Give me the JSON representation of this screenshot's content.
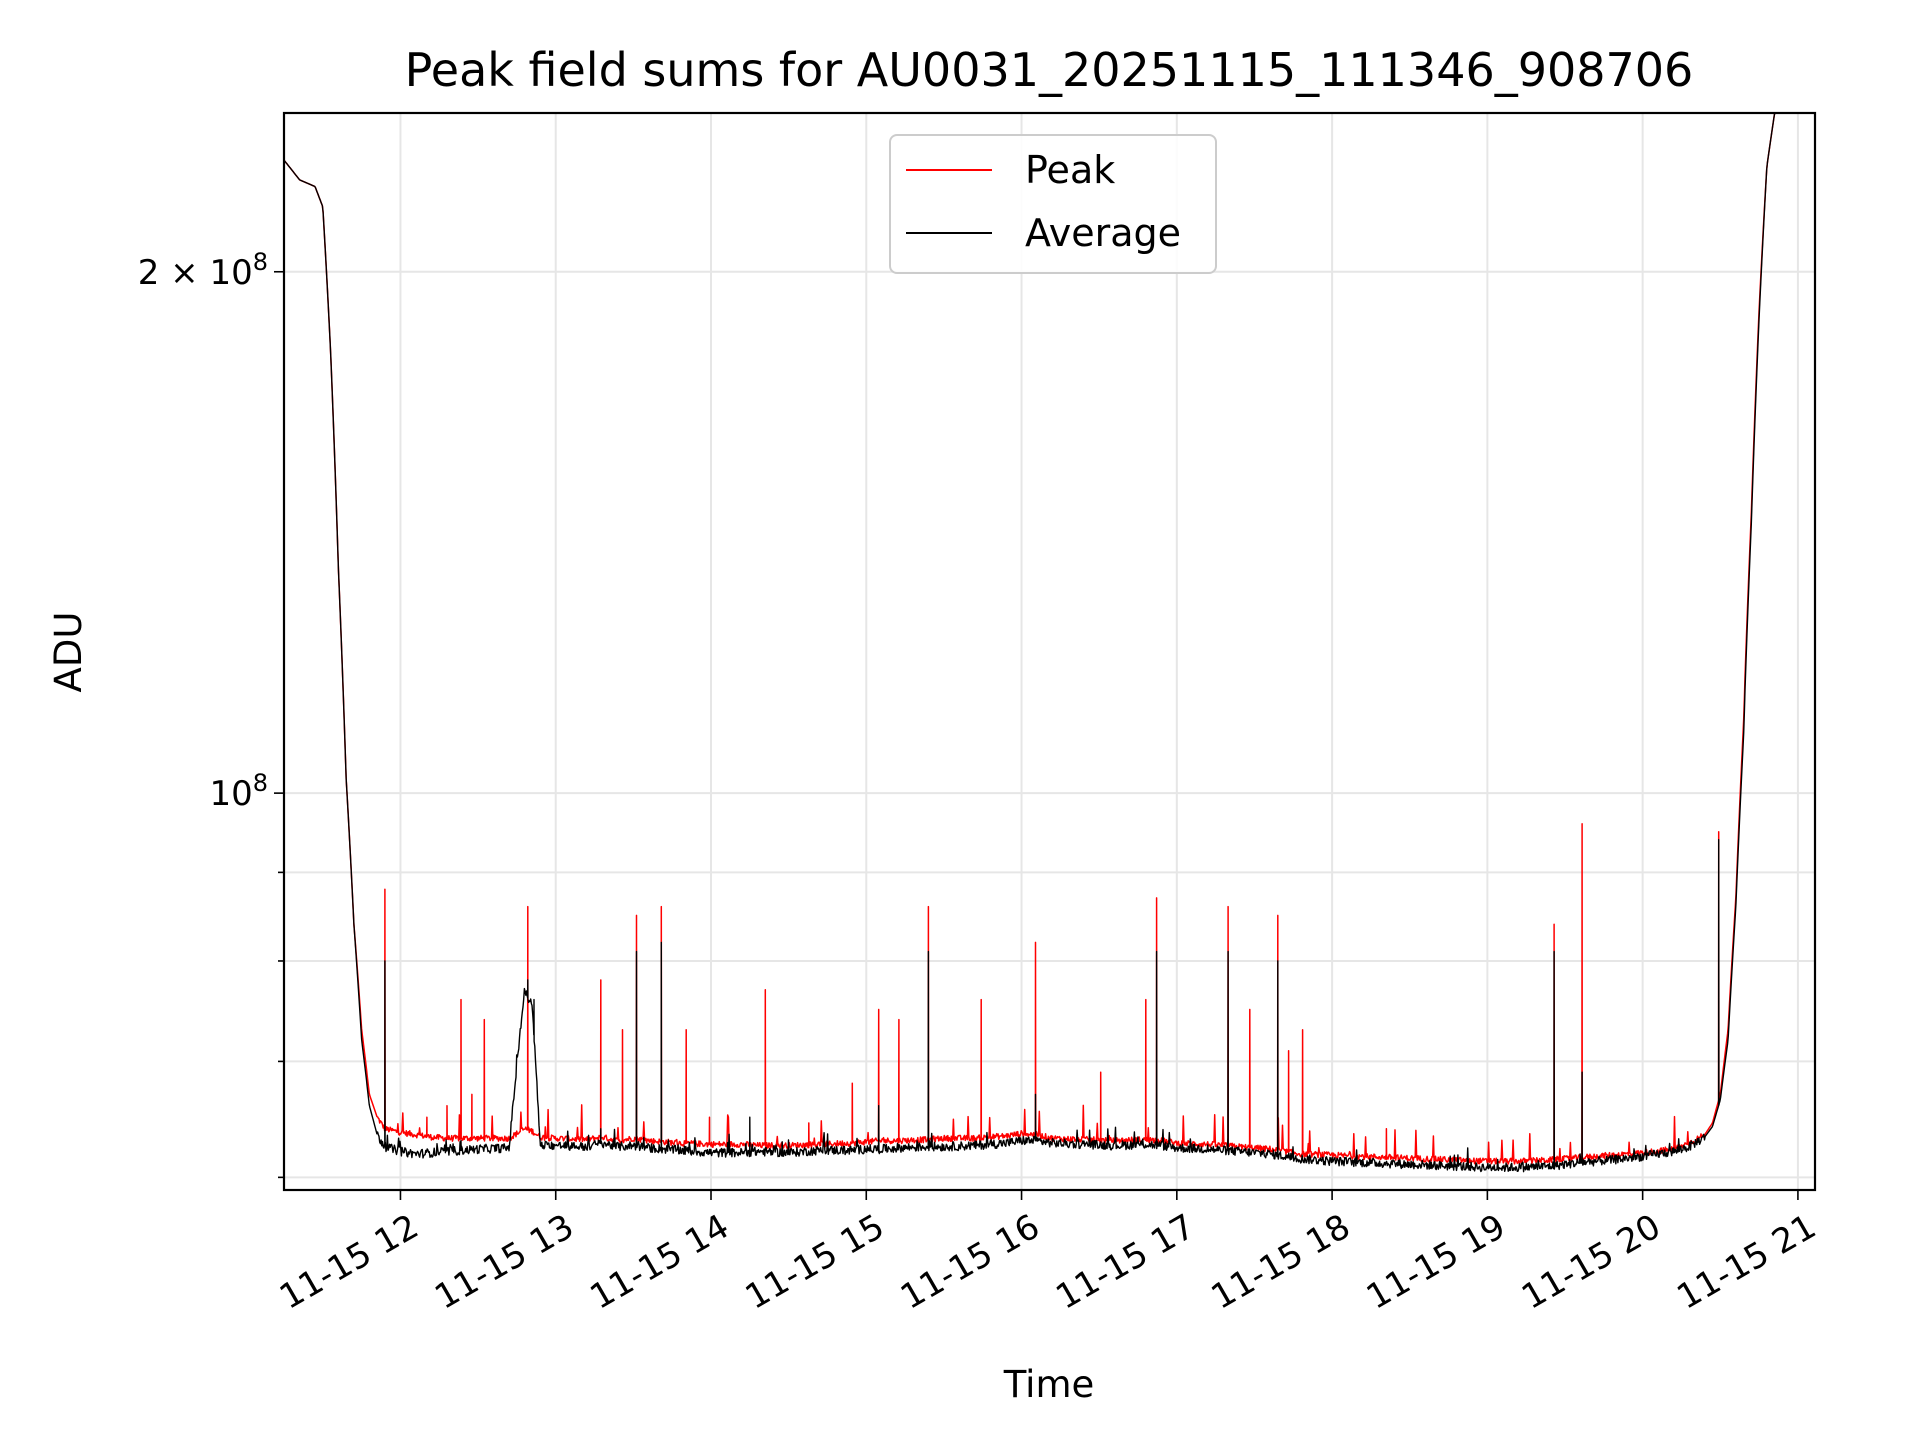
{
  "chart_data": {
    "type": "line",
    "title": "Peak field sums for AU0031_20251115_111346_908706",
    "xlabel": "Time",
    "ylabel": "ADU",
    "y_scale": "log",
    "grid": true,
    "legend_position": "upper-center",
    "xlim": [
      11.25,
      21.11
    ],
    "ylim": [
      59000000,
      247000000
    ],
    "x_ticks": [
      {
        "value": 12,
        "label": "11-15 12"
      },
      {
        "value": 13,
        "label": "11-15 13"
      },
      {
        "value": 14,
        "label": "11-15 14"
      },
      {
        "value": 15,
        "label": "11-15 15"
      },
      {
        "value": 16,
        "label": "11-15 16"
      },
      {
        "value": 17,
        "label": "11-15 17"
      },
      {
        "value": 18,
        "label": "11-15 18"
      },
      {
        "value": 19,
        "label": "11-15 19"
      },
      {
        "value": 20,
        "label": "11-15 20"
      },
      {
        "value": 21,
        "label": "11-15 21"
      }
    ],
    "y_major_ticks": [
      {
        "value": 100000000,
        "base": "10",
        "exp": "8",
        "prefix": ""
      },
      {
        "value": 200000000,
        "base": "10",
        "exp": "8",
        "prefix": "2 × "
      }
    ],
    "y_minor_ticks": [
      60000000,
      70000000,
      80000000,
      90000000
    ],
    "series": [
      {
        "name": "Peak",
        "color": "#ff0000",
        "x": [
          11.25,
          11.3,
          11.35,
          11.4,
          11.45,
          11.5,
          11.55,
          11.6,
          11.65,
          11.7,
          11.75,
          11.8,
          11.85,
          11.9,
          12.0,
          12.1,
          12.2,
          12.3,
          12.5,
          12.7,
          12.8,
          12.85,
          12.9,
          13.0,
          13.2,
          13.3,
          13.4,
          13.5,
          13.55,
          13.6,
          13.7,
          13.8,
          14.0,
          14.2,
          14.3,
          14.5,
          14.7,
          14.9,
          15.0,
          15.1,
          15.2,
          15.4,
          15.5,
          15.7,
          15.9,
          16.0,
          16.1,
          16.2,
          16.4,
          16.6,
          16.8,
          16.9,
          17.0,
          17.2,
          17.4,
          17.6,
          17.7,
          17.8,
          18.0,
          18.2,
          18.4,
          18.6,
          18.8,
          19.0,
          19.2,
          19.4,
          19.6,
          19.8,
          20.0,
          20.2,
          20.3,
          20.4,
          20.45,
          20.5,
          20.55,
          20.6,
          20.65,
          20.7,
          20.75,
          20.8,
          20.85,
          20.9,
          20.95
        ],
        "y": [
          232000000,
          229000000,
          226000000,
          225000000,
          224000000,
          218000000,
          180000000,
          135000000,
          102000000,
          84000000,
          73000000,
          67000000,
          65000000,
          64000000,
          63700000,
          63500000,
          63300000,
          63200000,
          63200000,
          63200000,
          64000000,
          63800000,
          63300000,
          63200000,
          63100000,
          63300000,
          63000000,
          63200000,
          63100000,
          63000000,
          62900000,
          62800000,
          62700000,
          62700000,
          62600000,
          62600000,
          62700000,
          62800000,
          62900000,
          63000000,
          63000000,
          63100000,
          63200000,
          63200000,
          63400000,
          63600000,
          63500000,
          63200000,
          63100000,
          63000000,
          63100000,
          63000000,
          62800000,
          62700000,
          62500000,
          62300000,
          62100000,
          61900000,
          61800000,
          61700000,
          61600000,
          61500000,
          61400000,
          61300000,
          61300000,
          61400000,
          61600000,
          61800000,
          62000000,
          62300000,
          62800000,
          63500000,
          64500000,
          67000000,
          73000000,
          87000000,
          110000000,
          145000000,
          190000000,
          230000000,
          247000000,
          247000000,
          247000000
        ],
        "spikes": [
          {
            "x": 11.9,
            "y": 88000000
          },
          {
            "x": 12.17,
            "y": 65000000
          },
          {
            "x": 12.3,
            "y": 66000000
          },
          {
            "x": 12.39,
            "y": 76000000
          },
          {
            "x": 12.46,
            "y": 67000000
          },
          {
            "x": 12.54,
            "y": 74000000
          },
          {
            "x": 12.82,
            "y": 86000000
          },
          {
            "x": 13.29,
            "y": 78000000
          },
          {
            "x": 13.43,
            "y": 73000000
          },
          {
            "x": 13.52,
            "y": 85000000
          },
          {
            "x": 13.68,
            "y": 86000000
          },
          {
            "x": 13.84,
            "y": 73000000
          },
          {
            "x": 13.99,
            "y": 65000000
          },
          {
            "x": 14.35,
            "y": 77000000
          },
          {
            "x": 14.63,
            "y": 64500000
          },
          {
            "x": 14.91,
            "y": 68000000
          },
          {
            "x": 15.08,
            "y": 75000000
          },
          {
            "x": 15.21,
            "y": 74000000
          },
          {
            "x": 15.4,
            "y": 86000000
          },
          {
            "x": 15.74,
            "y": 76000000
          },
          {
            "x": 16.09,
            "y": 82000000
          },
          {
            "x": 16.51,
            "y": 69000000
          },
          {
            "x": 16.8,
            "y": 76000000
          },
          {
            "x": 16.87,
            "y": 87000000
          },
          {
            "x": 17.33,
            "y": 86000000
          },
          {
            "x": 17.47,
            "y": 75000000
          },
          {
            "x": 17.65,
            "y": 85000000
          },
          {
            "x": 17.72,
            "y": 71000000
          },
          {
            "x": 17.81,
            "y": 73000000
          },
          {
            "x": 18.35,
            "y": 64000000
          },
          {
            "x": 19.43,
            "y": 84000000
          },
          {
            "x": 19.61,
            "y": 96000000
          },
          {
            "x": 20.49,
            "y": 95000000
          }
        ]
      },
      {
        "name": "Average",
        "color": "#000000",
        "x": [
          11.25,
          11.3,
          11.35,
          11.4,
          11.45,
          11.5,
          11.55,
          11.6,
          11.65,
          11.7,
          11.75,
          11.8,
          11.85,
          11.9,
          12.0,
          12.1,
          12.2,
          12.3,
          12.5,
          12.7,
          12.8,
          12.85,
          12.9,
          13.0,
          13.2,
          13.3,
          13.4,
          13.5,
          13.55,
          13.6,
          13.7,
          13.8,
          14.0,
          14.2,
          14.3,
          14.5,
          14.7,
          14.9,
          15.0,
          15.1,
          15.2,
          15.4,
          15.5,
          15.7,
          15.9,
          16.0,
          16.1,
          16.2,
          16.4,
          16.6,
          16.8,
          16.9,
          17.0,
          17.2,
          17.4,
          17.6,
          17.7,
          17.8,
          18.0,
          18.2,
          18.4,
          18.6,
          18.8,
          19.0,
          19.2,
          19.4,
          19.6,
          19.8,
          20.0,
          20.2,
          20.3,
          20.4,
          20.45,
          20.5,
          20.55,
          20.6,
          20.65,
          20.7,
          20.75,
          20.8,
          20.85,
          20.9,
          20.95
        ],
        "y": [
          232000000,
          229000000,
          226000000,
          225000000,
          224000000,
          218000000,
          180000000,
          135000000,
          102000000,
          84000000,
          72000000,
          66000000,
          63500000,
          62500000,
          62100000,
          61900000,
          62000000,
          62100000,
          62300000,
          62400000,
          77000000,
          75000000,
          62600000,
          62600000,
          62500000,
          62800000,
          62500000,
          62600000,
          62500000,
          62400000,
          62300000,
          62200000,
          62000000,
          62000000,
          62100000,
          62000000,
          62200000,
          62200000,
          62300000,
          62300000,
          62400000,
          62500000,
          62500000,
          62600000,
          62800000,
          63000000,
          63000000,
          62800000,
          62700000,
          62600000,
          62700000,
          62600000,
          62400000,
          62300000,
          62100000,
          61900000,
          61700000,
          61500000,
          61300000,
          61200000,
          61100000,
          61000000,
          60900000,
          60800000,
          60800000,
          60900000,
          61200000,
          61400000,
          61700000,
          62100000,
          62500000,
          63300000,
          64200000,
          66500000,
          72000000,
          86000000,
          108000000,
          143000000,
          188000000,
          230000000,
          247000000,
          247000000,
          247000000
        ],
        "spikes": [
          {
            "x": 11.9,
            "y": 80000000
          },
          {
            "x": 12.39,
            "y": 63000000
          },
          {
            "x": 12.82,
            "y": 78000000
          },
          {
            "x": 12.86,
            "y": 76000000
          },
          {
            "x": 13.29,
            "y": 64000000
          },
          {
            "x": 13.52,
            "y": 81000000
          },
          {
            "x": 13.68,
            "y": 82000000
          },
          {
            "x": 14.25,
            "y": 65000000
          },
          {
            "x": 15.08,
            "y": 66000000
          },
          {
            "x": 15.4,
            "y": 81000000
          },
          {
            "x": 16.09,
            "y": 67000000
          },
          {
            "x": 16.87,
            "y": 81000000
          },
          {
            "x": 17.33,
            "y": 81000000
          },
          {
            "x": 17.65,
            "y": 80000000
          },
          {
            "x": 19.43,
            "y": 81000000
          },
          {
            "x": 19.61,
            "y": 69000000
          },
          {
            "x": 20.49,
            "y": 94000000
          }
        ]
      }
    ]
  }
}
